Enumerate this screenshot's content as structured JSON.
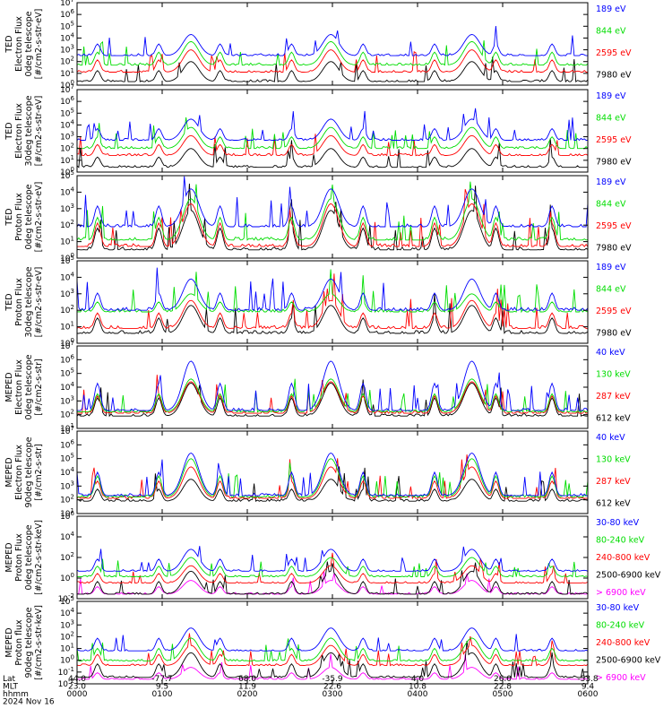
{
  "figure": {
    "date_label": "2024 Nov 16",
    "footer_row_labels": [
      "Lat",
      "MLT",
      "hhmm"
    ],
    "footer_columns": [
      {
        "lat": "44.0",
        "mlt": "23.0",
        "hhmm": "0000"
      },
      {
        "lat": "-77.7",
        "mlt": "9.5",
        "hhmm": "0100"
      },
      {
        "lat": "68.0",
        "mlt": "11.9",
        "hhmm": "0200"
      },
      {
        "lat": "-35.9",
        "mlt": "22.6",
        "hhmm": "0300"
      },
      {
        "lat": "4.0",
        "mlt": "10.8",
        "hhmm": "0400"
      },
      {
        "lat": "26.0",
        "mlt": "22.8",
        "hhmm": "0500"
      },
      {
        "lat": "-53.8",
        "mlt": "9.4",
        "hhmm": "0600"
      }
    ],
    "colors": {
      "black": "#000000",
      "red": "#ff0000",
      "green": "#00dd00",
      "blue": "#0000ff",
      "magenta": "#ff00ff"
    }
  },
  "chart_data": [
    {
      "type": "line",
      "ylabel": [
        "TED",
        "Electron Flux",
        "0deg telescope",
        "[#/cm2-s-str-eV]"
      ],
      "ylog": true,
      "ylim": [
        1,
        10000000
      ],
      "ytick_labels": [
        "10^0",
        "10^1",
        "10^2",
        "10^3",
        "10^4",
        "10^5",
        "10^6",
        "10^7"
      ],
      "xlim": [
        "0000",
        "0600"
      ],
      "series": [
        {
          "name": "7980 eV",
          "color": "#000000",
          "baseline_log": 0.3,
          "peak_log": 2.0
        },
        {
          "name": "2595 eV",
          "color": "#ff0000",
          "baseline_log": 1.1,
          "peak_log": 3.0
        },
        {
          "name": "844 eV",
          "color": "#00dd00",
          "baseline_log": 1.7,
          "peak_log": 3.7
        },
        {
          "name": "189 eV",
          "color": "#0000ff",
          "baseline_log": 2.5,
          "peak_log": 4.3
        }
      ]
    },
    {
      "type": "line",
      "ylabel": [
        "TED",
        "Electron Flux",
        "30deg telescope",
        "[#/cm2-s-str-eV]"
      ],
      "ylog": true,
      "ylim": [
        1,
        10000000
      ],
      "ytick_labels": [
        "10^0",
        "10^1",
        "10^2",
        "10^3",
        "10^4",
        "10^5",
        "10^6",
        "10^7"
      ],
      "xlim": [
        "0000",
        "0600"
      ],
      "series": [
        {
          "name": "7980 eV",
          "color": "#000000",
          "baseline_log": 0.4,
          "peak_log": 2.0
        },
        {
          "name": "2595 eV",
          "color": "#ff0000",
          "baseline_log": 1.4,
          "peak_log": 3.1
        },
        {
          "name": "844 eV",
          "color": "#00dd00",
          "baseline_log": 2.0,
          "peak_log": 3.8
        },
        {
          "name": "189 eV",
          "color": "#0000ff",
          "baseline_log": 2.7,
          "peak_log": 4.5
        }
      ]
    },
    {
      "type": "line",
      "ylabel": [
        "TED",
        "Proton Flux",
        "0deg telescope",
        "[#/cm2-s-str-eV]"
      ],
      "ylog": true,
      "ylim": [
        1,
        100000
      ],
      "ytick_labels": [
        "10^0",
        "10^1",
        "10^2",
        "10^3",
        "10^4",
        "10^5"
      ],
      "xlim": [
        "0000",
        "0600"
      ],
      "series": [
        {
          "name": "7980 eV",
          "color": "#000000",
          "baseline_log": 0.5,
          "peak_log": 2.9
        },
        {
          "name": "2595 eV",
          "color": "#ff0000",
          "baseline_log": 0.7,
          "peak_log": 3.3
        },
        {
          "name": "844 eV",
          "color": "#00dd00",
          "baseline_log": 1.1,
          "peak_log": 3.6
        },
        {
          "name": "189 eV",
          "color": "#0000ff",
          "baseline_log": 1.9,
          "peak_log": 4.2
        }
      ]
    },
    {
      "type": "line",
      "ylabel": [
        "TED",
        "Proton Flux",
        "30deg telescope",
        "[#/cm2-s-str-eV]"
      ],
      "ylog": true,
      "ylim": [
        1,
        100000
      ],
      "ytick_labels": [
        "10^0",
        "10^1",
        "10^2",
        "10^3",
        "10^4",
        "10^5"
      ],
      "xlim": [
        "0000",
        "0600"
      ],
      "series": [
        {
          "name": "7980 eV",
          "color": "#000000",
          "baseline_log": 0.6,
          "peak_log": 2.3
        },
        {
          "name": "2595 eV",
          "color": "#ff0000",
          "baseline_log": 0.9,
          "peak_log": 2.6
        },
        {
          "name": "844 eV",
          "color": "#00dd00",
          "baseline_log": 1.9,
          "peak_log": 3.0
        },
        {
          "name": "189 eV",
          "color": "#0000ff",
          "baseline_log": 2.0,
          "peak_log": 3.9
        }
      ]
    },
    {
      "type": "line",
      "ylabel": [
        "MEPED",
        "Electron Flux",
        "0deg telescope",
        "[#/cm2-s-str]"
      ],
      "ylog": true,
      "ylim": [
        10,
        10000000
      ],
      "ytick_labels": [
        "10^1",
        "10^2",
        "10^3",
        "10^4",
        "10^5",
        "10^6",
        "10^7"
      ],
      "xlim": [
        "0000",
        "0600"
      ],
      "series": [
        {
          "name": "612 keV",
          "color": "#000000",
          "baseline_log": 1.9,
          "peak_log": 4.3
        },
        {
          "name": "287 keV",
          "color": "#ff0000",
          "baseline_log": 2.1,
          "peak_log": 4.4
        },
        {
          "name": "130 keV",
          "color": "#00dd00",
          "baseline_log": 2.2,
          "peak_log": 4.6
        },
        {
          "name": "40 keV",
          "color": "#0000ff",
          "baseline_log": 2.3,
          "peak_log": 5.9
        }
      ]
    },
    {
      "type": "line",
      "ylabel": [
        "MEPED",
        "Electron Flux",
        "90deg telescope",
        "[#/cm2-s-str]"
      ],
      "ylog": true,
      "ylim": [
        10,
        10000000
      ],
      "ytick_labels": [
        "10^1",
        "10^2",
        "10^3",
        "10^4",
        "10^5",
        "10^6",
        "10^7"
      ],
      "xlim": [
        "0000",
        "0600"
      ],
      "series": [
        {
          "name": "612 keV",
          "color": "#000000",
          "baseline_log": 1.9,
          "peak_log": 3.5
        },
        {
          "name": "287 keV",
          "color": "#ff0000",
          "baseline_log": 2.1,
          "peak_log": 4.4
        },
        {
          "name": "130 keV",
          "color": "#00dd00",
          "baseline_log": 2.2,
          "peak_log": 5.0
        },
        {
          "name": "40 keV",
          "color": "#0000ff",
          "baseline_log": 2.3,
          "peak_log": 5.4
        }
      ]
    },
    {
      "type": "line",
      "ylabel": [
        "MEPED",
        "Proton Flux",
        "0deg telescope",
        "[#/cm2-s-str-keV]"
      ],
      "ylog": true,
      "ylim": [
        0.001,
        1000000
      ],
      "ytick_labels": [
        "10^-2",
        "10^0",
        "10^2",
        "10^4",
        "10^6"
      ],
      "xlim": [
        "0000",
        "0600"
      ],
      "series": [
        {
          "name": "> 6900 keV",
          "color": "#ff00ff",
          "baseline_log": -2.5,
          "peak_log": -1.0
        },
        {
          "name": "2500-6900 keV",
          "color": "#000000",
          "baseline_log": -2.5,
          "peak_log": 0.0
        },
        {
          "name": "240-800 keV",
          "color": "#ff0000",
          "baseline_log": -1.3,
          "peak_log": 0.6
        },
        {
          "name": "80-240 keV",
          "color": "#00dd00",
          "baseline_log": -0.6,
          "peak_log": 1.5
        },
        {
          "name": "30-80 keV",
          "color": "#0000ff",
          "baseline_log": 0.0,
          "peak_log": 2.4
        }
      ]
    },
    {
      "type": "line",
      "ylabel": [
        "MEPED",
        "Proton flux",
        "90deg telescope",
        "[#/cm2-s-str-keV]"
      ],
      "ylog": true,
      "ylim": [
        0.001,
        1000000
      ],
      "ytick_labels": [
        "10^-2",
        "10^-1",
        "10^0",
        "10^1",
        "10^2",
        "10^3",
        "10^4",
        "10^5"
      ],
      "xlim": [
        "0000",
        "0600"
      ],
      "series": [
        {
          "name": "> 6900 keV",
          "color": "#ff00ff",
          "baseline_log": -2.5,
          "peak_log": -1.2
        },
        {
          "name": "2500-6900 keV",
          "color": "#000000",
          "baseline_log": -2.3,
          "peak_log": 0.4
        },
        {
          "name": "240-800 keV",
          "color": "#ff0000",
          "baseline_log": -1.0,
          "peak_log": 1.2
        },
        {
          "name": "80-240 keV",
          "color": "#00dd00",
          "baseline_log": -0.5,
          "peak_log": 2.0
        },
        {
          "name": "30-80 keV",
          "color": "#0000ff",
          "baseline_log": 0.6,
          "peak_log": 3.1
        }
      ]
    }
  ]
}
